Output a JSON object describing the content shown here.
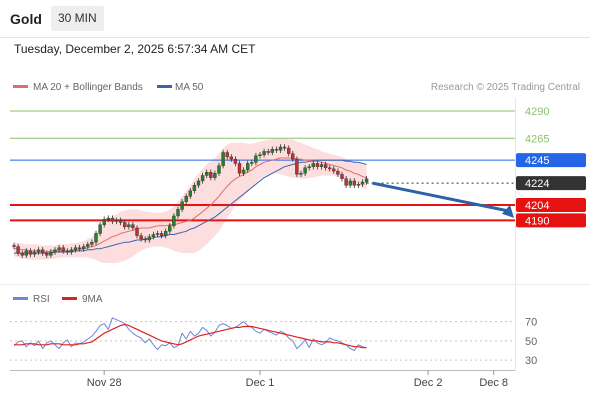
{
  "header": {
    "title": "Gold",
    "timeframe": "30 MIN",
    "datetime": "Tuesday, December 2, 2025 6:57:34 AM CET"
  },
  "colors": {
    "ma20": "#e06d6d",
    "bollinger_band": "#fbd3d3",
    "ma50": "#3b64a8",
    "candle_up": "#2a7e2a",
    "candle_down": "#c03030",
    "resistance_green": "#8cc069",
    "pivot_blue": "#2465e8",
    "support_red": "#e61111",
    "current_price": "#333333",
    "rsi": "#6b87d8",
    "rsi_ma": "#e02020",
    "arrow": "#2c62a8"
  },
  "chart_data": [
    {
      "type": "line",
      "panel": "price",
      "legend": [
        "MA 20 + Bollinger Bands",
        "MA 50"
      ],
      "watermark": "Research © 2025 Trading Central",
      "ylim": [
        4140,
        4300
      ],
      "price_levels": [
        {
          "value": 4290,
          "label": "4290",
          "kind": "resistance",
          "color": "#8cc069"
        },
        {
          "value": 4265,
          "label": "4265",
          "kind": "resistance",
          "color": "#8cc069"
        },
        {
          "value": 4245,
          "label": "4245",
          "kind": "pivot",
          "color": "#2465e8"
        },
        {
          "value": 4224,
          "label": "4224",
          "kind": "current",
          "color": "#333333"
        },
        {
          "value": 4204,
          "label": "4204",
          "kind": "support",
          "color": "#e61111"
        },
        {
          "value": 4190,
          "label": "4190",
          "kind": "support",
          "color": "#e61111"
        }
      ],
      "close": [
        4166,
        4160,
        4158,
        4162,
        4159,
        4161,
        4163,
        4160,
        4158,
        4161,
        4163,
        4165,
        4162,
        4161,
        4163,
        4165,
        4164,
        4166,
        4168,
        4170,
        4178,
        4186,
        4191,
        4192,
        4189,
        4190,
        4188,
        4184,
        4186,
        4183,
        4176,
        4173,
        4172,
        4175,
        4177,
        4178,
        4176,
        4180,
        4185,
        4194,
        4200,
        4207,
        4212,
        4217,
        4222,
        4226,
        4231,
        4234,
        4229,
        4233,
        4240,
        4252,
        4248,
        4246,
        4242,
        4233,
        4236,
        4242,
        4243,
        4249,
        4250,
        4253,
        4252,
        4255,
        4254,
        4257,
        4256,
        4251,
        4246,
        4232,
        4233,
        4238,
        4239,
        4242,
        4239,
        4241,
        4238,
        4237,
        4235,
        4232,
        4228,
        4222,
        4226,
        4222,
        4223,
        4225,
        4228
      ],
      "ma20": [
        4164,
        4164,
        4163,
        4163,
        4162,
        4162,
        4162,
        4161,
        4161,
        4162,
        4162,
        4162,
        4162,
        4162,
        4162,
        4163,
        4163,
        4164,
        4165,
        4166,
        4167,
        4169,
        4171,
        4173,
        4175,
        4176,
        4178,
        4179,
        4180,
        4181,
        4182,
        4183,
        4183,
        4183,
        4184,
        4185,
        4185,
        4185,
        4186,
        4186,
        4187,
        4188,
        4189,
        4190,
        4192,
        4195,
        4198,
        4201,
        4204,
        4208,
        4212,
        4217,
        4221,
        4225,
        4228,
        4230,
        4232,
        4234,
        4236,
        4239,
        4241,
        4243,
        4244,
        4245,
        4246,
        4247,
        4247,
        4247,
        4247,
        4246,
        4246,
        4245,
        4245,
        4244,
        4244,
        4243,
        4242,
        4241,
        4240,
        4239,
        4238,
        4236,
        4235,
        4233,
        4232,
        4230,
        4229
      ],
      "bb_upper": [
        4170,
        4169,
        4169,
        4168,
        4168,
        4168,
        4168,
        4167,
        4167,
        4167,
        4167,
        4168,
        4168,
        4168,
        4169,
        4169,
        4170,
        4171,
        4173,
        4175,
        4178,
        4182,
        4186,
        4190,
        4193,
        4196,
        4198,
        4199,
        4200,
        4200,
        4200,
        4199,
        4198,
        4198,
        4197,
        4197,
        4197,
        4198,
        4200,
        4203,
        4207,
        4212,
        4217,
        4222,
        4228,
        4233,
        4237,
        4241,
        4244,
        4247,
        4251,
        4256,
        4259,
        4261,
        4261,
        4261,
        4261,
        4260,
        4260,
        4261,
        4262,
        4263,
        4264,
        4264,
        4265,
        4265,
        4265,
        4264,
        4264,
        4262,
        4261,
        4259,
        4258,
        4256,
        4255,
        4253,
        4252,
        4251,
        4250,
        4249,
        4248,
        4246,
        4245,
        4244,
        4243,
        4241,
        4240
      ],
      "bb_lower": [
        4157,
        4156,
        4155,
        4155,
        4154,
        4154,
        4154,
        4154,
        4154,
        4155,
        4155,
        4156,
        4156,
        4156,
        4156,
        4156,
        4156,
        4156,
        4156,
        4155,
        4154,
        4152,
        4151,
        4151,
        4151,
        4151,
        4152,
        4153,
        4155,
        4157,
        4160,
        4162,
        4164,
        4165,
        4166,
        4166,
        4166,
        4165,
        4164,
        4162,
        4161,
        4160,
        4160,
        4160,
        4160,
        4162,
        4165,
        4168,
        4172,
        4176,
        4180,
        4186,
        4192,
        4198,
        4204,
        4208,
        4212,
        4216,
        4220,
        4224,
        4228,
        4230,
        4232,
        4233,
        4233,
        4232,
        4231,
        4230,
        4229,
        4229,
        4228,
        4228,
        4229,
        4229,
        4230,
        4231,
        4231,
        4231,
        4231,
        4230,
        4229,
        4228,
        4226,
        4224,
        4222,
        4220,
        4218
      ],
      "ma50": [
        4160,
        4160,
        4160,
        4160,
        4160,
        4160,
        4160,
        4160,
        4160,
        4160,
        4161,
        4161,
        4161,
        4161,
        4161,
        4162,
        4162,
        4162,
        4163,
        4163,
        4164,
        4164,
        4165,
        4166,
        4167,
        4168,
        4169,
        4170,
        4170,
        4171,
        4172,
        4172,
        4173,
        4173,
        4174,
        4175,
        4175,
        4176,
        4177,
        4177,
        4178,
        4179,
        4180,
        4182,
        4183,
        4185,
        4187,
        4189,
        4191,
        4193,
        4196,
        4199,
        4202,
        4205,
        4208,
        4211,
        4214,
        4217,
        4220,
        4223,
        4226,
        4229,
        4231,
        4233,
        4235,
        4237,
        4239,
        4240,
        4241,
        4242,
        4243,
        4243,
        4244,
        4244,
        4245,
        4245,
        4245,
        4245,
        4245,
        4245,
        4245,
        4244,
        4244,
        4243,
        4243,
        4242,
        4241
      ],
      "forecast_arrow": {
        "from": 4224,
        "to": 4195
      }
    },
    {
      "type": "line",
      "panel": "rsi",
      "legend": [
        "RSI",
        "9MA"
      ],
      "ylim": [
        25,
        80
      ],
      "levels": [
        {
          "value": 70,
          "label": "70"
        },
        {
          "value": 50,
          "label": "50"
        },
        {
          "value": 30,
          "label": "30"
        }
      ],
      "rsi": [
        45,
        49,
        50,
        44,
        48,
        45,
        50,
        42,
        48,
        50,
        46,
        42,
        48,
        51,
        44,
        48,
        47,
        49,
        52,
        55,
        60,
        66,
        68,
        62,
        74,
        72,
        70,
        68,
        62,
        58,
        55,
        53,
        48,
        52,
        46,
        41,
        46,
        45,
        48,
        43,
        45,
        58,
        52,
        60,
        55,
        58,
        64,
        61,
        55,
        59,
        66,
        68,
        66,
        63,
        64,
        67,
        70,
        66,
        64,
        60,
        58,
        62,
        60,
        58,
        56,
        60,
        58,
        53,
        50,
        42,
        46,
        51,
        43,
        52,
        48,
        46,
        48,
        53,
        51,
        50,
        48,
        46,
        42,
        40,
        46,
        44,
        43
      ],
      "rsi_ma": [
        46,
        46,
        46,
        47,
        47,
        47,
        46,
        46,
        46,
        47,
        47,
        47,
        46,
        46,
        46,
        46,
        47,
        47,
        48,
        49,
        52,
        55,
        58,
        60,
        62,
        64,
        66,
        67,
        66,
        64,
        62,
        60,
        58,
        56,
        54,
        52,
        50,
        49,
        48,
        47,
        46,
        47,
        49,
        51,
        53,
        55,
        56,
        57,
        58,
        59,
        60,
        61,
        62,
        63,
        64,
        64,
        65,
        65,
        65,
        64,
        63,
        62,
        61,
        60,
        59,
        58,
        57,
        56,
        55,
        54,
        53,
        52,
        51,
        50,
        50,
        49,
        49,
        49,
        48,
        48,
        47,
        46,
        45,
        44,
        44,
        43,
        43
      ]
    }
  ],
  "x_axis": {
    "ticks": [
      {
        "label": "Nov 28",
        "index": 22
      },
      {
        "label": "Dec 1",
        "index": 60
      },
      {
        "label": "Dec 2",
        "index": 101
      },
      {
        "label": "Dec 8",
        "index": 117
      }
    ]
  }
}
